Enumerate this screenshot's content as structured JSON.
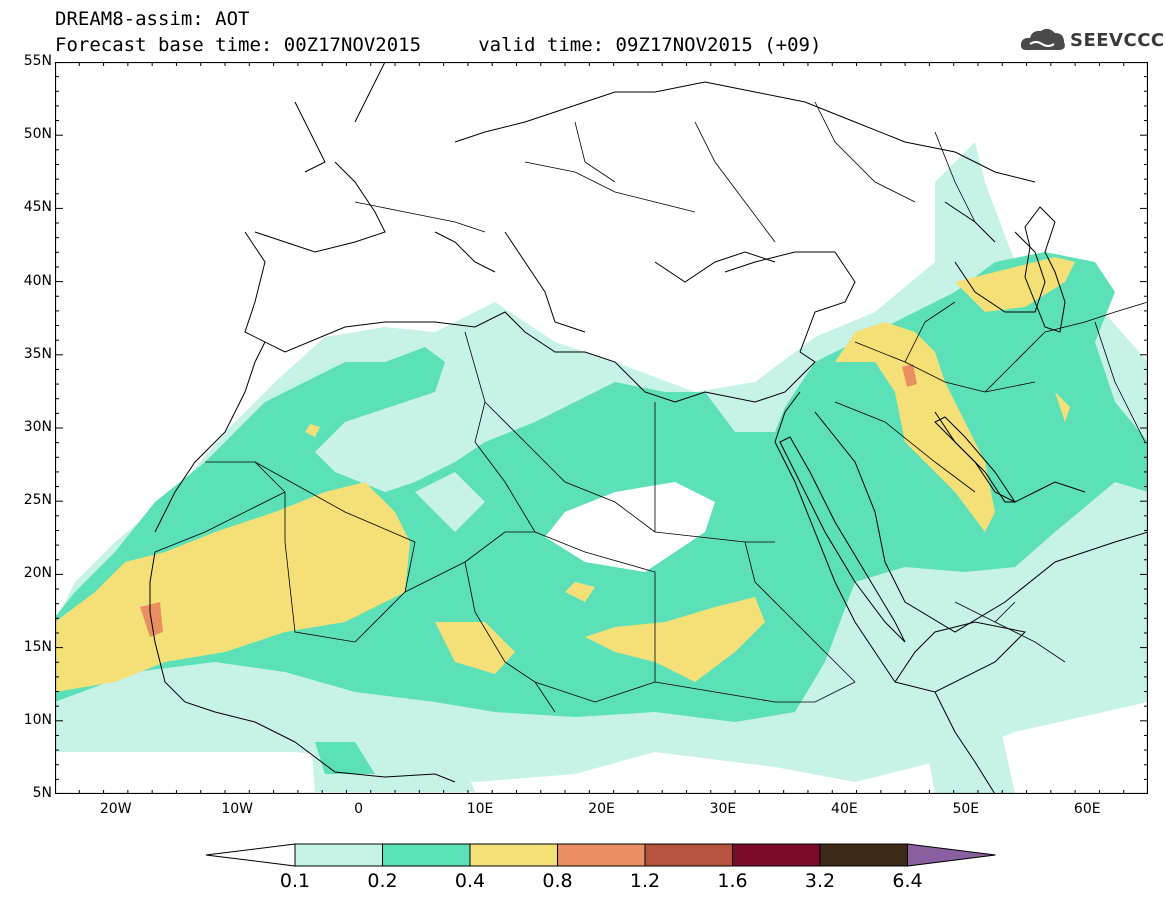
{
  "header": {
    "title_line1": "DREAM8-assim: AOT",
    "title_line2": "Forecast base time: 00Z17NOV2015     valid time: 09Z17NOV2015 (+09)",
    "logo_text": "SEEVCCC"
  },
  "axes": {
    "lat_labels": [
      "55N",
      "50N",
      "45N",
      "40N",
      "35N",
      "30N",
      "25N",
      "20N",
      "15N",
      "10N",
      "5N"
    ],
    "lon_labels": [
      "20W",
      "10W",
      "0",
      "10E",
      "20E",
      "30E",
      "40E",
      "50E",
      "60E"
    ]
  },
  "legend": {
    "labels": [
      "0.1",
      "0.2",
      "0.4",
      "0.8",
      "1.2",
      "1.6",
      "3.2",
      "6.4"
    ],
    "colors": [
      "#ffffff",
      "#c6f2e8",
      "#5ce0b8",
      "#f5e077",
      "#e98f62",
      "#b5533e",
      "#7a0b2b",
      "#3d2a16",
      "#8a5fa0"
    ]
  },
  "map": {
    "variable": "AOT",
    "lat_range": [
      5,
      55
    ],
    "lon_range": [
      -25,
      65
    ]
  }
}
